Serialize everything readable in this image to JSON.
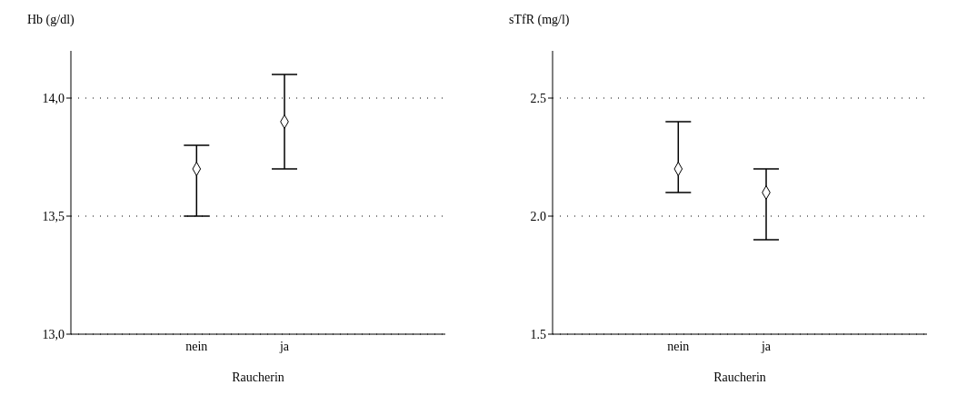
{
  "chart_data": [
    {
      "type": "scatter",
      "ylabel": "Hb (g/dl)",
      "xlabel": "Raucherin",
      "categories": [
        "nein",
        "ja"
      ],
      "marker": "diamond",
      "grid": "y",
      "series": [
        {
          "color": "#000000",
          "values": [
            13.7,
            13.9
          ],
          "errors": [
            [
              13.5,
              13.8
            ],
            [
              13.7,
              14.1
            ]
          ]
        }
      ],
      "ylim": [
        13.0,
        14.2
      ],
      "yticks": [
        {
          "value": 13.0,
          "label": "13,0"
        },
        {
          "value": 13.5,
          "label": "13,5"
        },
        {
          "value": 14.0,
          "label": "14,0"
        }
      ]
    },
    {
      "type": "scatter",
      "ylabel": "sTfR (mg/l)",
      "xlabel": "Raucherin",
      "categories": [
        "nein",
        "ja"
      ],
      "marker": "diamond",
      "grid": "y",
      "series": [
        {
          "color": "#000000",
          "values": [
            2.2,
            2.1
          ],
          "errors": [
            [
              2.1,
              2.4
            ],
            [
              1.9,
              2.2
            ]
          ]
        }
      ],
      "ylim": [
        1.5,
        2.7
      ],
      "yticks": [
        1.5,
        {
          "value": 2.0,
          "label": "2.0"
        },
        2.5
      ]
    }
  ]
}
